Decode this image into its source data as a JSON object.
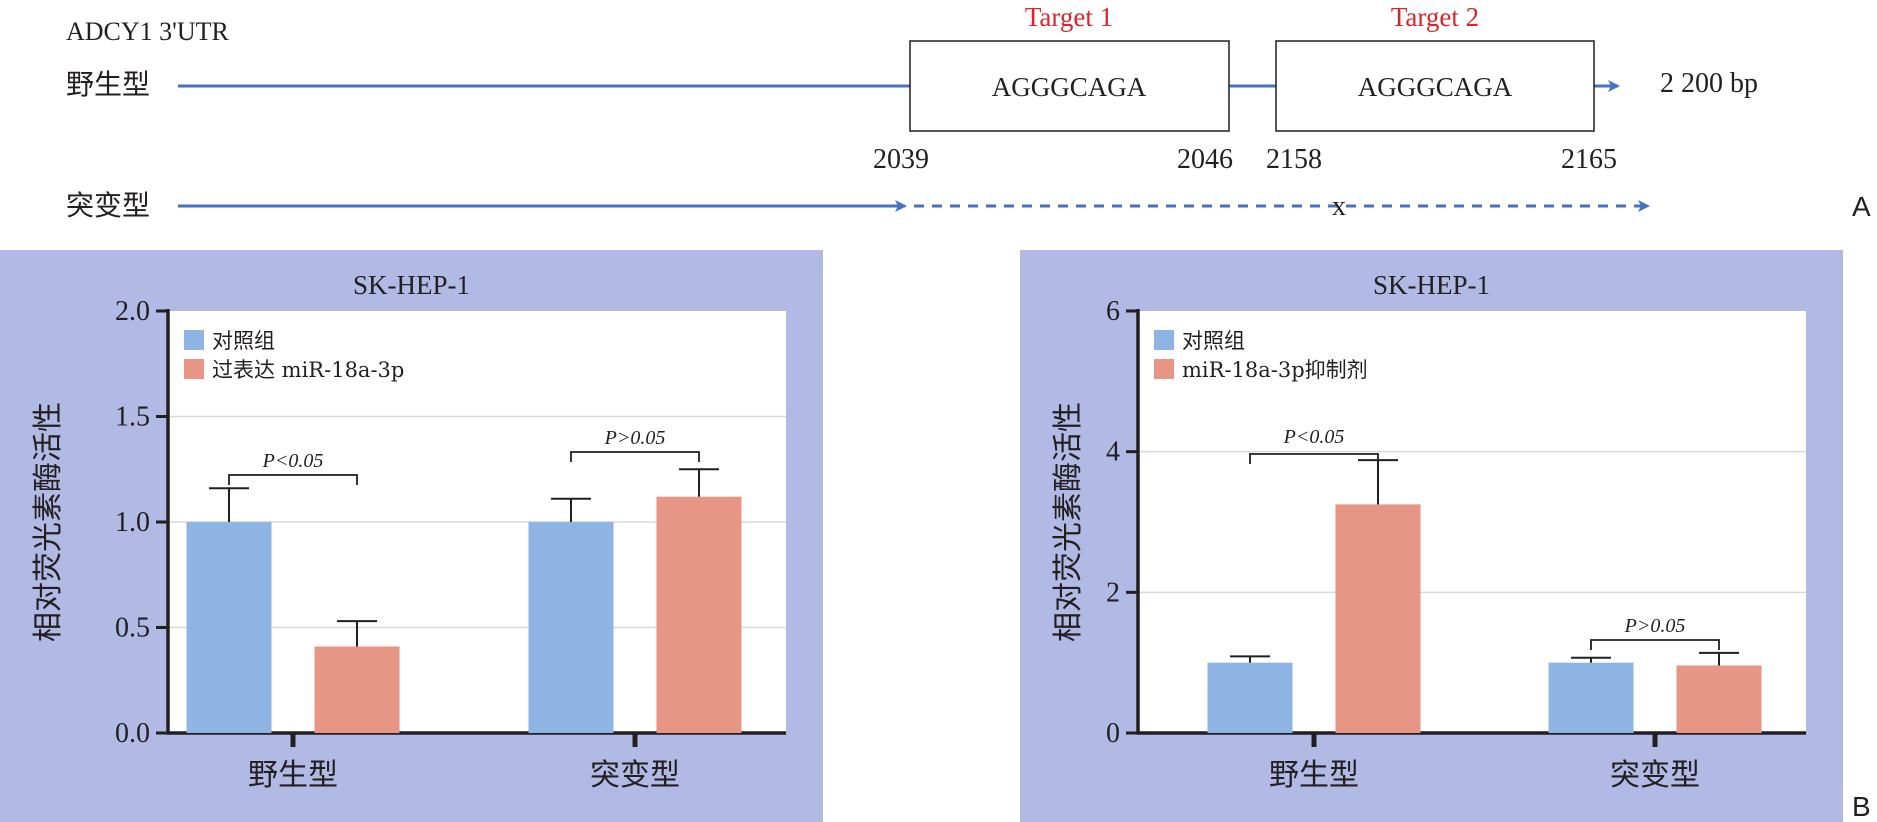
{
  "panel_a": {
    "gene_label": "ADCY1 3'UTR",
    "wild_type_label": "野生型",
    "mutant_label": "突变型",
    "targets": [
      {
        "name": "Target 1",
        "sequence": "AGGGCAGA",
        "start": "2039",
        "end": "2046"
      },
      {
        "name": "Target 2",
        "sequence": "AGGGCAGA",
        "start": "2158",
        "end": "2165"
      }
    ],
    "length_label": "2 200 bp",
    "mutation_mark": "x",
    "panel_letter": "A"
  },
  "panel_b_letter": "B",
  "colors": {
    "line_blue": "#4472c4",
    "target_red": "#d8242a",
    "panel_bg": "#b1b9e5",
    "control_bar": "#8eb4e3",
    "treatment_bar": "#e79585"
  },
  "chart_data": [
    {
      "type": "bar",
      "title": "SK-HEP-1",
      "ylabel": "相对荧光素酶活性",
      "categories": [
        "野生型",
        "突变型"
      ],
      "ylim": [
        0,
        2.0
      ],
      "yticks": [
        "0.0",
        "0.5",
        "1.0",
        "1.5",
        "2.0"
      ],
      "series": [
        {
          "name": "对照组",
          "values": [
            1.0,
            1.0
          ],
          "errors": [
            0.16,
            0.11
          ]
        },
        {
          "name": "过表达 miR-18a-3p",
          "values": [
            0.41,
            1.12
          ],
          "errors": [
            0.12,
            0.13
          ]
        }
      ],
      "annotations": [
        "P<0.05",
        "P>0.05"
      ],
      "legend": "top-left",
      "grid": true
    },
    {
      "type": "bar",
      "title": "SK-HEP-1",
      "ylabel": "相对荧光素酶活性",
      "categories": [
        "野生型",
        "突变型"
      ],
      "ylim": [
        0,
        6
      ],
      "yticks": [
        "0",
        "2",
        "4",
        "6"
      ],
      "series": [
        {
          "name": "对照组",
          "values": [
            1.0,
            1.0
          ],
          "errors": [
            0.09,
            0.07
          ]
        },
        {
          "name": "miR-18a-3p抑制剂",
          "values": [
            3.25,
            0.96
          ],
          "errors": [
            0.63,
            0.18
          ]
        }
      ],
      "annotations": [
        "P<0.05",
        "P>0.05"
      ],
      "legend": "top-left",
      "grid": true
    }
  ]
}
